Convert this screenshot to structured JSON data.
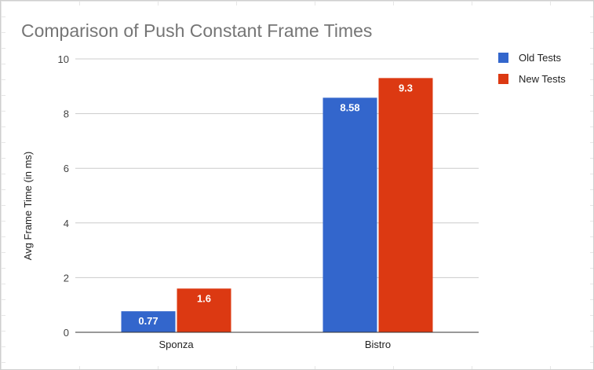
{
  "chart_data": {
    "type": "bar",
    "title": "Comparison of Push Constant Frame Times",
    "xlabel": "",
    "ylabel": "Avg Frame Time (in ms)",
    "categories": [
      "Sponza",
      "Bistro"
    ],
    "series": [
      {
        "name": "Old Tests",
        "values": [
          0.77,
          8.58
        ],
        "color": "#3366cc"
      },
      {
        "name": "New Tests",
        "values": [
          1.6,
          9.3
        ],
        "color": "#dc3912"
      }
    ],
    "data_labels": [
      [
        "0.77",
        "8.58"
      ],
      [
        "1.6",
        "9.3"
      ]
    ],
    "ylim": [
      0,
      10
    ],
    "yticks": [
      0,
      2,
      4,
      6,
      8,
      10
    ],
    "ytick_labels": [
      "0",
      "2",
      "4",
      "6",
      "8",
      "10"
    ],
    "grid": true,
    "legend_position": "right",
    "colors": {
      "gridline": "#cccccc",
      "baseline": "#333333"
    }
  }
}
